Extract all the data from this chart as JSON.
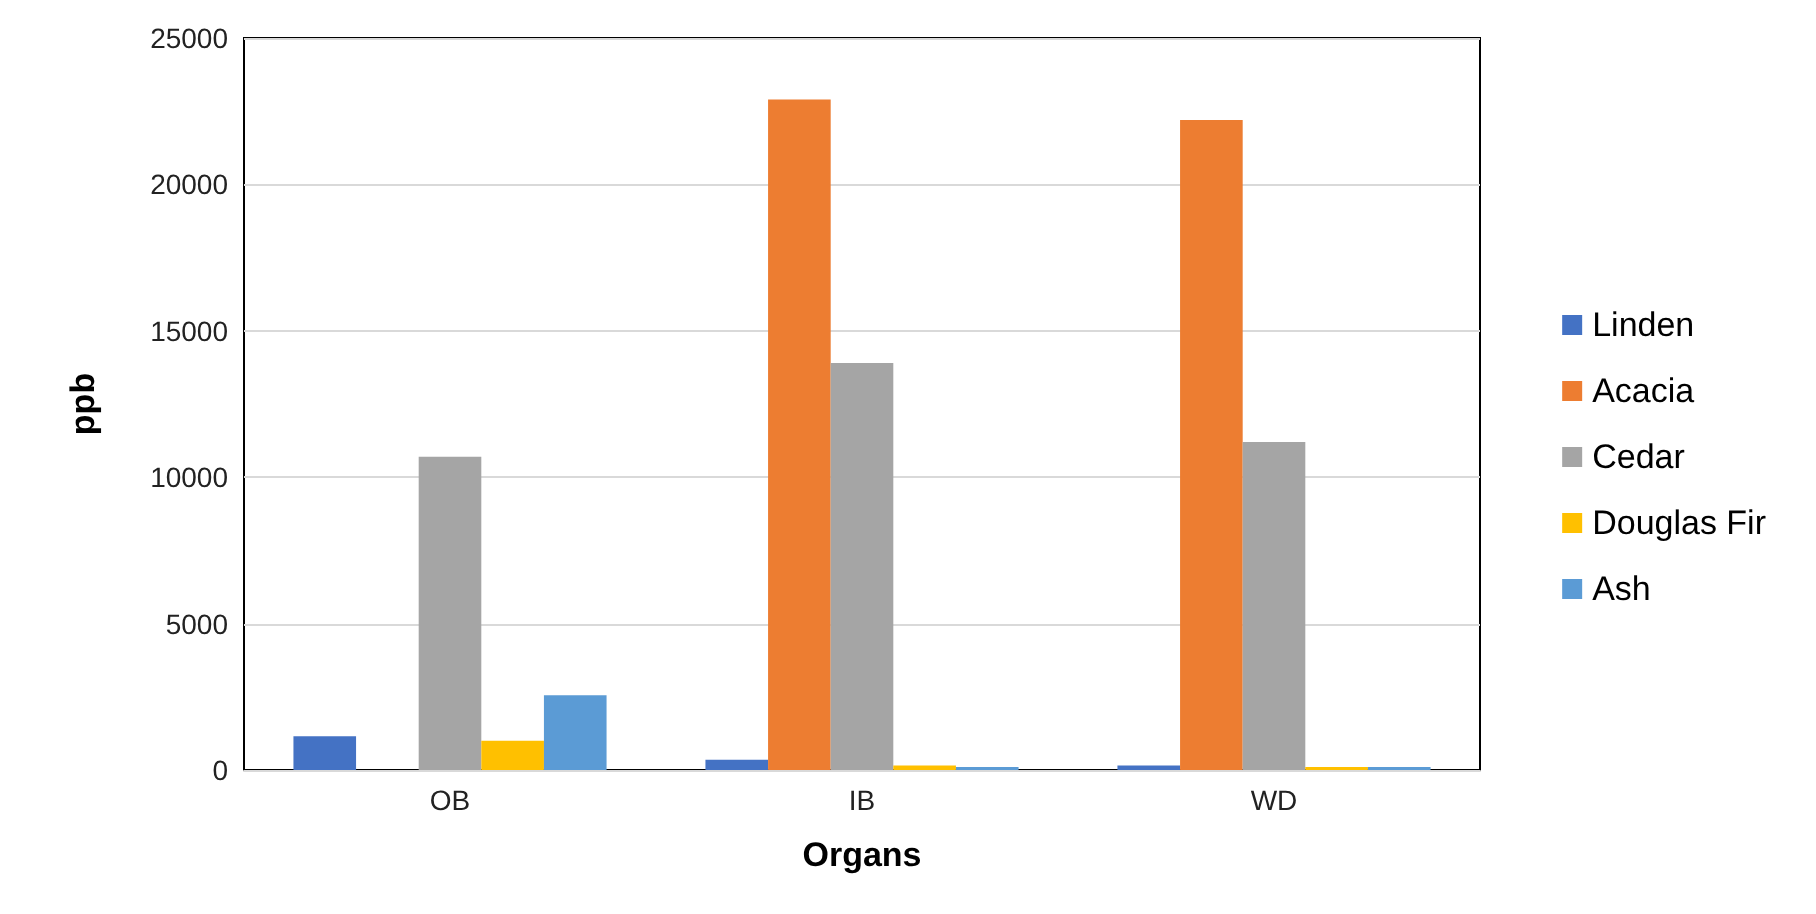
{
  "chart_data": {
    "type": "bar",
    "xlabel": "Organs",
    "ylabel": "ppb",
    "categories": [
      "OB",
      "IB",
      "WD"
    ],
    "series": [
      {
        "name": "Linden",
        "color": "#4472c4",
        "values": [
          1150,
          350,
          150
        ]
      },
      {
        "name": "Acacia",
        "color": "#ed7d31",
        "values": [
          0,
          22900,
          22200
        ]
      },
      {
        "name": "Cedar",
        "color": "#a5a5a5",
        "values": [
          10700,
          13900,
          11200
        ]
      },
      {
        "name": "Douglas Fir",
        "color": "#ffc000",
        "values": [
          1000,
          150,
          100
        ]
      },
      {
        "name": "Ash",
        "color": "#5b9bd5",
        "values": [
          2550,
          100,
          100
        ]
      }
    ],
    "ylim": [
      0,
      25000
    ],
    "yticks": [
      0,
      5000,
      10000,
      15000,
      20000,
      25000
    ],
    "grid": "y",
    "legend": "right"
  }
}
